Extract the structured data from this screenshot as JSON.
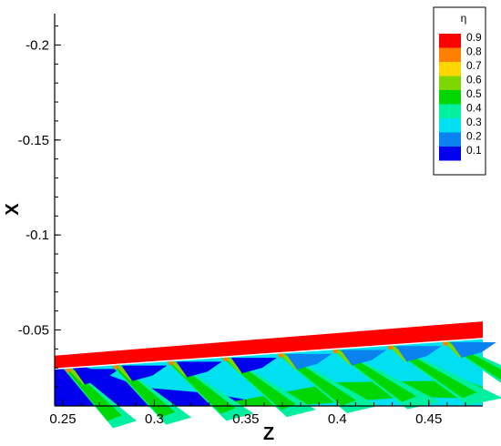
{
  "chart_data": {
    "type": "heatmap",
    "xlabel": "Z",
    "ylabel": "X",
    "xlim": [
      0.2455,
      0.4795
    ],
    "ylim": [
      -0.01,
      -0.2165
    ],
    "x_ticks": [
      {
        "value": 0.25,
        "label": "0.25"
      },
      {
        "value": 0.3,
        "label": "0.3"
      },
      {
        "value": 0.35,
        "label": "0.35"
      },
      {
        "value": 0.4,
        "label": "0.4"
      },
      {
        "value": 0.45,
        "label": "0.45"
      }
    ],
    "y_ticks": [
      {
        "value": -0.2,
        "label": "-0.2"
      },
      {
        "value": -0.15,
        "label": "-0.15"
      },
      {
        "value": -0.1,
        "label": "-0.1"
      },
      {
        "value": -0.05,
        "label": "-0.05"
      }
    ],
    "legend": {
      "title": "η",
      "placement": "top-right",
      "levels": [
        {
          "label": "0.9",
          "color": "#ff0000"
        },
        {
          "label": "0.8",
          "color": "#ff7f00"
        },
        {
          "label": "0.7",
          "color": "#ffd700"
        },
        {
          "label": "0.6",
          "color": "#7fd700"
        },
        {
          "label": "0.5",
          "color": "#00d700"
        },
        {
          "label": "0.4",
          "color": "#00f0a0"
        },
        {
          "label": "0.3",
          "color": "#00e0f0"
        },
        {
          "label": "0.2",
          "color": "#0a82f0"
        },
        {
          "label": "0.1",
          "color": "#0000ee"
        }
      ]
    },
    "colors": {
      "lowest": "#0000ee",
      "cyan": "#00e0f0",
      "teal": "#00f0a0",
      "green": "#00d700",
      "lightgreen": "#7fd700",
      "blue": "#0a82f0",
      "red": "#ff0000",
      "orange": "#ff7f00"
    },
    "holes_z": [
      0.252,
      0.278,
      0.308,
      0.338,
      0.368,
      0.398,
      0.428,
      0.458
    ],
    "surface": {
      "z": [
        0.2455,
        0.4795
      ],
      "x_top": [
        -0.0365,
        -0.0545
      ],
      "x_band_bottom": [
        -0.0295,
        -0.0455
      ]
    }
  }
}
